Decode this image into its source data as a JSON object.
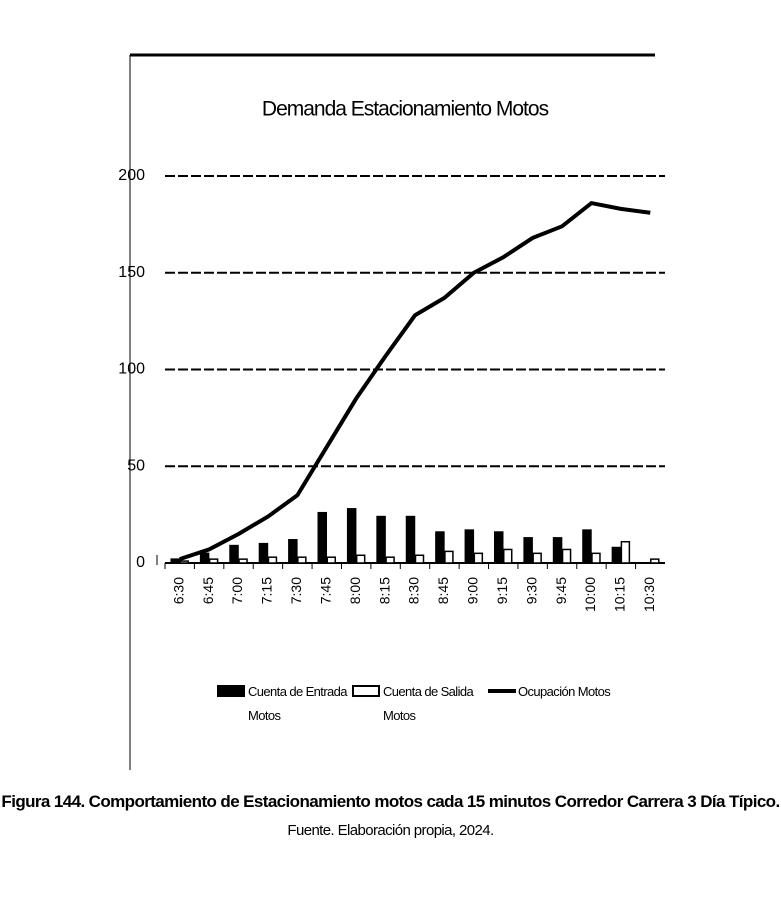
{
  "chart_data": {
    "type": "bar-line",
    "title": "Demanda Estacionamiento Motos",
    "categories": [
      "6:30",
      "6:45",
      "7:00",
      "7:15",
      "7:30",
      "7:45",
      "8:00",
      "8:15",
      "8:30",
      "8:45",
      "9:00",
      "9:15",
      "9:30",
      "9:45",
      "10:00",
      "10:15",
      "10:30"
    ],
    "series": [
      {
        "name": "Cuenta de Entrada Motos",
        "type": "bar",
        "color": "#000000",
        "values": [
          2,
          5,
          9,
          10,
          12,
          26,
          28,
          24,
          24,
          16,
          17,
          16,
          13,
          13,
          17,
          8,
          0
        ]
      },
      {
        "name": "Cuenta de Salida Motos",
        "type": "bar",
        "color": "#ffffff",
        "values": [
          1,
          2,
          2,
          3,
          3,
          3,
          4,
          3,
          4,
          6,
          5,
          7,
          5,
          7,
          5,
          11,
          2
        ]
      },
      {
        "name": "Ocupación Motos",
        "type": "line",
        "color": "#000000",
        "values": [
          2,
          7,
          15,
          24,
          35,
          60,
          85,
          107,
          128,
          137,
          150,
          158,
          168,
          174,
          186,
          183,
          181
        ]
      }
    ],
    "ylim": [
      0,
      200
    ],
    "yticks": [
      0,
      50,
      100,
      150,
      200
    ],
    "grid": true,
    "legend": "bottom"
  },
  "caption": "Figura 144. Comportamiento de Estacionamiento motos cada 15 minutos Corredor Carrera 3 Día Típico.",
  "source": "Fuente. Elaboración propia, 2024."
}
